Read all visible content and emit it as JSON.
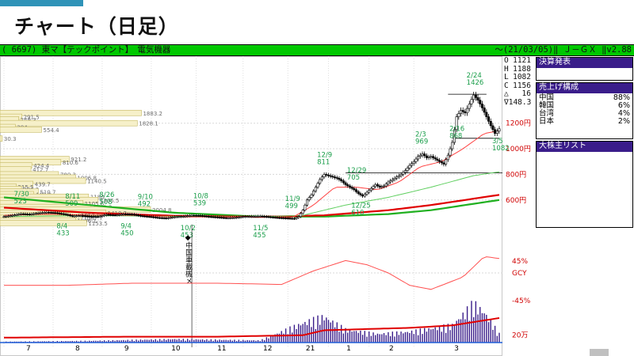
{
  "page": {
    "title": "チャート（日足）",
    "accent_color": "#2f93b8"
  },
  "header": {
    "left_text": "( 6697) 東マ【テックポイント】　電気機器",
    "right_text": "～(21/03/05)‖ Ｊ－ＧＸ ‖v2.88",
    "bar_color": "#00c800"
  },
  "ohlc": {
    "rows": [
      {
        "k": "O",
        "v": "1121"
      },
      {
        "k": "H",
        "v": "1188"
      },
      {
        "k": "L",
        "v": "1082"
      },
      {
        "k": "C",
        "v": "1156"
      },
      {
        "k": "△",
        "v": "16"
      },
      {
        "k": "∇",
        "v": "148.3"
      }
    ]
  },
  "panels": {
    "settlement": {
      "title": "決算発表"
    },
    "sales": {
      "title": "売上げ構成",
      "items": [
        {
          "label": "中国",
          "value": "88%"
        },
        {
          "label": "韓国",
          "value": "6%"
        },
        {
          "label": "台湾",
          "value": "4%"
        },
        {
          "label": "日本",
          "value": "2%"
        }
      ]
    },
    "shareholders": {
      "title": "大株主リスト"
    }
  },
  "chart_data": {
    "type": "candlestick",
    "months": [
      "7",
      "8",
      "9",
      "10",
      "11",
      "12",
      "21",
      "1",
      "2",
      "3"
    ],
    "price_axis": {
      "ticks": [
        600,
        800,
        1000,
        1200
      ],
      "tick_labels": [
        "600円",
        "800円",
        "1000円",
        "1200円"
      ],
      "range": [
        240,
        1600
      ]
    },
    "oscillator_axis": {
      "tick_labels": [
        "45%",
        "GCY",
        "-45%"
      ]
    },
    "volume_axis": {
      "tick_labels": [
        "20万"
      ]
    },
    "annotations": [
      {
        "date": "2/24",
        "value": "1426"
      },
      {
        "date": "2/3",
        "value": "969"
      },
      {
        "date": "12/9",
        "value": "811"
      },
      {
        "date": "12/29",
        "value": "705"
      },
      {
        "date": "11/9",
        "value": "499"
      },
      {
        "date": "10/8",
        "value": "539"
      },
      {
        "date": "9/10",
        "value": "492"
      },
      {
        "date": "8/26",
        "value": "508"
      },
      {
        "date": "8/11",
        "value": "509"
      },
      {
        "date": "7/30",
        "value": "523"
      },
      {
        "date": "8/4",
        "value": "433"
      },
      {
        "date": "9/4",
        "value": "450"
      },
      {
        "date": "10/2",
        "value": "453"
      },
      {
        "date": "11/5",
        "value": "455"
      },
      {
        "date": "12/25",
        "value": "610"
      },
      {
        "date": "2/16",
        "value": "868"
      },
      {
        "date": "3/5",
        "value": "1082"
      }
    ],
    "volume_profile": [
      {
        "price": 1280,
        "value": "1883.2"
      },
      {
        "price": 1250,
        "value": "291.5"
      },
      {
        "price": 1230,
        "value": "249.3"
      },
      {
        "price": 1200,
        "value": "1828.1"
      },
      {
        "price": 1170,
        "value": "204"
      },
      {
        "price": 1150,
        "value": "554.4"
      },
      {
        "price": 1080,
        "value": "30.3"
      },
      {
        "price": 920,
        "value": "921.2"
      },
      {
        "price": 895,
        "value": "810.6"
      },
      {
        "price": 870,
        "value": "424.4"
      },
      {
        "price": 840,
        "value": "412.7"
      },
      {
        "price": 800,
        "value": "780.3"
      },
      {
        "price": 775,
        "value": "1006.8"
      },
      {
        "price": 750,
        "value": "1140.5"
      },
      {
        "price": 725,
        "value": "439.7"
      },
      {
        "price": 705,
        "value": "215.5"
      },
      {
        "price": 685,
        "value": "286.2"
      },
      {
        "price": 665,
        "value": "510.7"
      },
      {
        "price": 645,
        "value": "448.2"
      },
      {
        "price": 625,
        "value": "1180"
      },
      {
        "price": 600,
        "value": "1306.5"
      },
      {
        "price": 575,
        "value": "1105.6"
      },
      {
        "price": 545,
        "value": "1213.2"
      },
      {
        "price": 525,
        "value": "2004.8"
      },
      {
        "price": 500,
        "value": "1410.2"
      },
      {
        "price": 480,
        "value": "1053.5"
      },
      {
        "price": 460,
        "value": "1087.7"
      },
      {
        "price": 440,
        "value": "1006.1"
      },
      {
        "price": 420,
        "value": "1153.5"
      }
    ],
    "event_label": "◆中国車載機メ",
    "hlines": [
      {
        "price": 1426
      },
      {
        "price": 1082
      },
      {
        "price": 811
      }
    ],
    "series_anchors": {
      "close": [
        [
          0,
          470
        ],
        [
          4,
          480
        ],
        [
          8,
          492
        ],
        [
          12,
          488
        ],
        [
          16,
          498
        ],
        [
          20,
          504
        ],
        [
          24,
          500
        ],
        [
          28,
          490
        ],
        [
          32,
          474
        ],
        [
          36,
          478
        ],
        [
          40,
          472
        ],
        [
          44,
          470
        ],
        [
          48,
          486
        ],
        [
          52,
          482
        ],
        [
          56,
          490
        ],
        [
          60,
          488
        ],
        [
          64,
          476
        ],
        [
          68,
          470
        ],
        [
          72,
          462
        ],
        [
          76,
          458
        ],
        [
          80,
          468
        ],
        [
          84,
          472
        ],
        [
          88,
          480
        ],
        [
          92,
          478
        ],
        [
          96,
          470
        ],
        [
          100,
          465
        ],
        [
          104,
          460
        ],
        [
          108,
          462
        ],
        [
          112,
          470
        ],
        [
          116,
          472
        ],
        [
          120,
          474
        ],
        [
          124,
          468
        ],
        [
          128,
          462
        ],
        [
          132,
          458
        ],
        [
          136,
          455
        ],
        [
          138,
          470
        ],
        [
          140,
          520
        ],
        [
          142,
          600
        ],
        [
          144,
          640
        ],
        [
          146,
          700
        ],
        [
          148,
          760
        ],
        [
          150,
          800
        ],
        [
          152,
          790
        ],
        [
          154,
          780
        ],
        [
          156,
          770
        ],
        [
          158,
          750
        ],
        [
          160,
          720
        ],
        [
          162,
          700
        ],
        [
          164,
          680
        ],
        [
          166,
          650
        ],
        [
          168,
          630
        ],
        [
          170,
          660
        ],
        [
          172,
          690
        ],
        [
          174,
          720
        ],
        [
          176,
          700
        ],
        [
          178,
          710
        ],
        [
          180,
          740
        ],
        [
          182,
          760
        ],
        [
          184,
          780
        ],
        [
          186,
          800
        ],
        [
          188,
          830
        ],
        [
          190,
          870
        ],
        [
          192,
          900
        ],
        [
          194,
          940
        ],
        [
          196,
          960
        ],
        [
          198,
          930
        ],
        [
          200,
          940
        ],
        [
          202,
          920
        ],
        [
          204,
          900
        ],
        [
          206,
          880
        ],
        [
          208,
          950
        ],
        [
          210,
          1050
        ],
        [
          212,
          1250
        ],
        [
          214,
          1300
        ],
        [
          216,
          1280
        ],
        [
          218,
          1350
        ],
        [
          220,
          1420
        ],
        [
          222,
          1380
        ],
        [
          224,
          1320
        ],
        [
          226,
          1250
        ],
        [
          228,
          1180
        ],
        [
          230,
          1120
        ],
        [
          232,
          1156
        ]
      ],
      "ma_fast": [
        [
          0,
          480
        ],
        [
          20,
          490
        ],
        [
          40,
          482
        ],
        [
          60,
          480
        ],
        [
          80,
          466
        ],
        [
          100,
          468
        ],
        [
          120,
          468
        ],
        [
          135,
          462
        ],
        [
          145,
          560
        ],
        [
          155,
          700
        ],
        [
          165,
          700
        ],
        [
          175,
          680
        ],
        [
          185,
          740
        ],
        [
          195,
          860
        ],
        [
          205,
          900
        ],
        [
          215,
          1000
        ],
        [
          225,
          1120
        ],
        [
          232,
          1140
        ]
      ],
      "ma_mid": [
        [
          0,
          470
        ],
        [
          40,
          478
        ],
        [
          80,
          472
        ],
        [
          120,
          468
        ],
        [
          140,
          480
        ],
        [
          160,
          560
        ],
        [
          180,
          620
        ],
        [
          200,
          700
        ],
        [
          220,
          790
        ],
        [
          232,
          820
        ]
      ],
      "ma_red": [
        [
          0,
          540
        ],
        [
          40,
          500
        ],
        [
          80,
          476
        ],
        [
          120,
          468
        ],
        [
          150,
          480
        ],
        [
          180,
          520
        ],
        [
          200,
          560
        ],
        [
          220,
          610
        ],
        [
          232,
          640
        ]
      ],
      "ma_green": [
        [
          0,
          620
        ],
        [
          40,
          560
        ],
        [
          80,
          500
        ],
        [
          120,
          470
        ],
        [
          150,
          470
        ],
        [
          180,
          490
        ],
        [
          200,
          520
        ],
        [
          220,
          570
        ],
        [
          232,
          600
        ]
      ],
      "oscillator": [
        [
          0,
          0.2
        ],
        [
          30,
          0.2
        ],
        [
          60,
          0.25
        ],
        [
          100,
          0.25
        ],
        [
          130,
          0.22
        ],
        [
          145,
          0.55
        ],
        [
          160,
          0.8
        ],
        [
          170,
          0.7
        ],
        [
          180,
          0.5
        ],
        [
          190,
          0.2
        ],
        [
          200,
          0.1
        ],
        [
          215,
          0.4
        ],
        [
          225,
          0.9
        ],
        [
          232,
          0.85
        ]
      ],
      "volume_ma": [
        [
          0,
          0.1
        ],
        [
          60,
          0.12
        ],
        [
          100,
          0.12
        ],
        [
          140,
          0.15
        ],
        [
          150,
          0.25
        ],
        [
          190,
          0.3
        ],
        [
          210,
          0.35
        ],
        [
          232,
          0.5
        ]
      ],
      "volume": [
        [
          0,
          0.02
        ],
        [
          40,
          0.04
        ],
        [
          80,
          0.08
        ],
        [
          120,
          0.05
        ],
        [
          140,
          0.45
        ],
        [
          150,
          0.6
        ],
        [
          160,
          0.3
        ],
        [
          175,
          0.2
        ],
        [
          190,
          0.25
        ],
        [
          210,
          0.4
        ],
        [
          220,
          0.9
        ],
        [
          225,
          0.7
        ],
        [
          232,
          0.2
        ]
      ]
    }
  }
}
